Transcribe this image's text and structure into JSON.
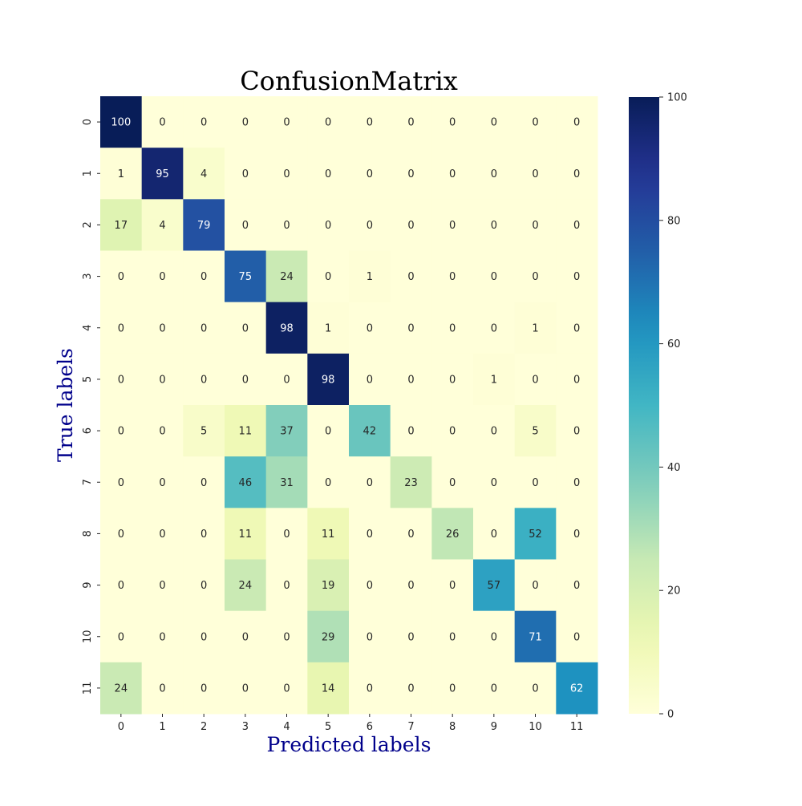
{
  "chart_data": {
    "type": "heatmap",
    "title": "ConfusionMatrix",
    "xlabel": "Predicted labels",
    "ylabel": "True labels",
    "axis_label_color": "#00008b",
    "colormap": "YlGnBu",
    "x_ticks": [
      "0",
      "1",
      "2",
      "3",
      "4",
      "5",
      "6",
      "7",
      "8",
      "9",
      "10",
      "11"
    ],
    "y_ticks": [
      "0",
      "1",
      "2",
      "3",
      "4",
      "5",
      "6",
      "7",
      "8",
      "9",
      "10",
      "11"
    ],
    "values": [
      [
        100,
        0,
        0,
        0,
        0,
        0,
        0,
        0,
        0,
        0,
        0,
        0
      ],
      [
        1,
        95,
        4,
        0,
        0,
        0,
        0,
        0,
        0,
        0,
        0,
        0
      ],
      [
        17,
        4,
        79,
        0,
        0,
        0,
        0,
        0,
        0,
        0,
        0,
        0
      ],
      [
        0,
        0,
        0,
        75,
        24,
        0,
        1,
        0,
        0,
        0,
        0,
        0
      ],
      [
        0,
        0,
        0,
        0,
        98,
        1,
        0,
        0,
        0,
        0,
        1,
        0
      ],
      [
        0,
        0,
        0,
        0,
        0,
        98,
        0,
        0,
        0,
        1,
        0,
        0
      ],
      [
        0,
        0,
        5,
        11,
        37,
        0,
        42,
        0,
        0,
        0,
        5,
        0
      ],
      [
        0,
        0,
        0,
        46,
        31,
        0,
        0,
        23,
        0,
        0,
        0,
        0
      ],
      [
        0,
        0,
        0,
        11,
        0,
        11,
        0,
        0,
        26,
        0,
        52,
        0
      ],
      [
        0,
        0,
        0,
        24,
        0,
        19,
        0,
        0,
        0,
        57,
        0,
        0
      ],
      [
        0,
        0,
        0,
        0,
        0,
        29,
        0,
        0,
        0,
        0,
        71,
        0
      ],
      [
        24,
        0,
        0,
        0,
        0,
        14,
        0,
        0,
        0,
        0,
        0,
        62
      ]
    ],
    "colorbar": {
      "range": [
        0,
        100
      ],
      "ticks": [
        "0",
        "20",
        "40",
        "60",
        "80",
        "100"
      ]
    },
    "grid": false
  }
}
